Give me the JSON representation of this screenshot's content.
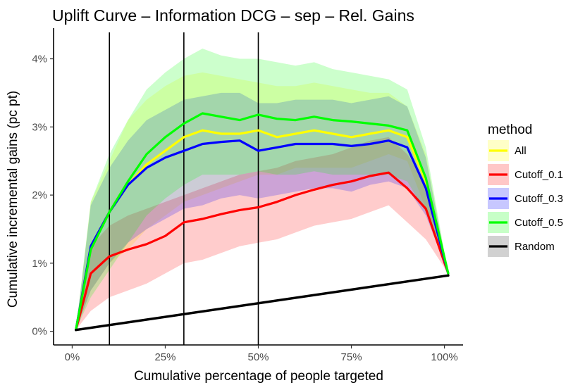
{
  "chart_data": {
    "type": "line",
    "title": "Uplift Curve –  Information DCG  –  sep  –  Rel. Gains",
    "xlabel": "Cumulative percentage of people targeted",
    "ylabel": "Cumulative incremental gains (pc pt)",
    "xlim": [
      -0.05,
      1.05
    ],
    "ylim": [
      -0.2,
      4.45
    ],
    "x_ticks": [
      0,
      0.25,
      0.5,
      0.75,
      1.0
    ],
    "x_tick_labels": [
      "0%",
      "25%",
      "50%",
      "75%",
      "100%"
    ],
    "y_ticks": [
      0,
      1,
      2,
      3,
      4
    ],
    "y_tick_labels": [
      "0%",
      "1%",
      "2%",
      "3%",
      "4%"
    ],
    "vlines": [
      0.1,
      0.3,
      0.5
    ],
    "legend": {
      "title": "method",
      "position": "right"
    },
    "series": [
      {
        "name": "All",
        "color": "#ffff00",
        "x": [
          0.01,
          0.05,
          0.1,
          0.15,
          0.2,
          0.25,
          0.3,
          0.35,
          0.4,
          0.45,
          0.5,
          0.55,
          0.6,
          0.65,
          0.7,
          0.75,
          0.8,
          0.85,
          0.9,
          0.95,
          1.01
        ],
        "y": [
          0.02,
          1.25,
          1.75,
          2.15,
          2.45,
          2.65,
          2.85,
          2.95,
          2.9,
          2.9,
          2.95,
          2.85,
          2.9,
          2.95,
          2.9,
          2.85,
          2.9,
          2.95,
          2.85,
          2.2,
          0.85
        ],
        "lower": [
          0.02,
          0.6,
          1.0,
          1.2,
          1.5,
          1.7,
          1.9,
          2.0,
          2.1,
          2.2,
          2.3,
          2.3,
          2.4,
          2.4,
          2.4,
          2.4,
          2.5,
          2.6,
          2.5,
          1.8,
          0.85
        ],
        "upper": [
          0.02,
          1.9,
          2.5,
          3.1,
          3.4,
          3.6,
          3.75,
          3.8,
          3.75,
          3.7,
          3.65,
          3.6,
          3.6,
          3.65,
          3.6,
          3.55,
          3.5,
          3.5,
          3.3,
          2.6,
          0.85
        ]
      },
      {
        "name": "Cutoff_0.1",
        "color": "#ff0000",
        "x": [
          0.01,
          0.05,
          0.1,
          0.15,
          0.2,
          0.25,
          0.3,
          0.35,
          0.4,
          0.45,
          0.5,
          0.55,
          0.6,
          0.65,
          0.7,
          0.75,
          0.8,
          0.85,
          0.9,
          0.95,
          1.01
        ],
        "y": [
          0.02,
          0.85,
          1.1,
          1.2,
          1.28,
          1.4,
          1.6,
          1.65,
          1.72,
          1.78,
          1.82,
          1.9,
          2.0,
          2.08,
          2.15,
          2.2,
          2.28,
          2.33,
          2.1,
          1.8,
          0.85
        ],
        "lower": [
          0.02,
          0.3,
          0.5,
          0.6,
          0.7,
          0.85,
          1.0,
          1.05,
          1.15,
          1.25,
          1.3,
          1.35,
          1.45,
          1.55,
          1.6,
          1.65,
          1.75,
          1.85,
          1.6,
          1.35,
          0.85
        ],
        "upper": [
          0.02,
          1.25,
          1.55,
          1.7,
          1.8,
          1.9,
          2.0,
          2.1,
          2.2,
          2.3,
          2.35,
          2.4,
          2.5,
          2.55,
          2.6,
          2.7,
          2.8,
          2.85,
          2.6,
          2.2,
          0.85
        ]
      },
      {
        "name": "Cutoff_0.3",
        "color": "#0000ff",
        "x": [
          0.01,
          0.05,
          0.1,
          0.15,
          0.2,
          0.25,
          0.3,
          0.35,
          0.4,
          0.45,
          0.5,
          0.55,
          0.6,
          0.65,
          0.7,
          0.75,
          0.8,
          0.85,
          0.9,
          0.95,
          1.01
        ],
        "y": [
          0.02,
          1.25,
          1.75,
          2.15,
          2.4,
          2.55,
          2.65,
          2.75,
          2.78,
          2.8,
          2.65,
          2.7,
          2.75,
          2.75,
          2.75,
          2.72,
          2.75,
          2.8,
          2.7,
          2.1,
          0.85
        ],
        "lower": [
          0.02,
          0.6,
          1.0,
          1.3,
          1.5,
          1.65,
          1.8,
          1.85,
          1.95,
          2.0,
          1.95,
          2.0,
          2.05,
          2.1,
          2.1,
          2.05,
          2.15,
          2.2,
          2.1,
          1.7,
          0.85
        ],
        "upper": [
          0.02,
          1.85,
          2.4,
          2.8,
          3.1,
          3.25,
          3.4,
          3.45,
          3.5,
          3.5,
          3.35,
          3.35,
          3.4,
          3.4,
          3.4,
          3.35,
          3.4,
          3.45,
          3.3,
          2.55,
          0.85
        ]
      },
      {
        "name": "Cutoff_0.5",
        "color": "#00ff00",
        "x": [
          0.01,
          0.05,
          0.1,
          0.15,
          0.2,
          0.25,
          0.3,
          0.35,
          0.4,
          0.45,
          0.5,
          0.55,
          0.6,
          0.65,
          0.7,
          0.75,
          0.8,
          0.85,
          0.9,
          0.95,
          1.01
        ],
        "y": [
          0.02,
          1.2,
          1.75,
          2.2,
          2.6,
          2.85,
          3.05,
          3.2,
          3.15,
          3.1,
          3.18,
          3.12,
          3.1,
          3.15,
          3.1,
          3.08,
          3.05,
          3.02,
          2.95,
          2.25,
          0.85
        ],
        "lower": [
          0.02,
          0.5,
          0.9,
          1.3,
          1.7,
          1.95,
          2.15,
          2.3,
          2.3,
          2.3,
          2.35,
          2.3,
          2.3,
          2.35,
          2.3,
          2.3,
          2.3,
          2.3,
          2.2,
          1.75,
          0.85
        ],
        "upper": [
          0.02,
          1.9,
          2.6,
          3.1,
          3.55,
          3.8,
          4.0,
          4.15,
          4.05,
          4.0,
          4.0,
          3.95,
          3.9,
          3.95,
          3.85,
          3.8,
          3.75,
          3.7,
          3.55,
          2.7,
          0.85
        ]
      },
      {
        "name": "Random",
        "color": "#000000",
        "x": [
          0.01,
          1.01
        ],
        "y": [
          0.02,
          0.82
        ]
      }
    ]
  }
}
